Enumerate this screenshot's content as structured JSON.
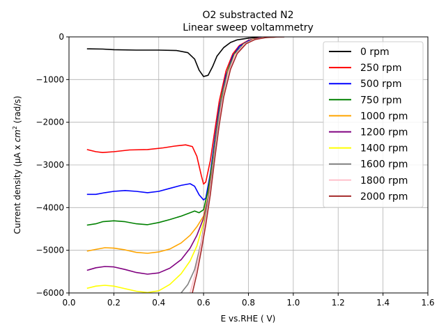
{
  "chart_data": {
    "type": "line",
    "title": "O2 substracted N2",
    "subtitle": "Linear sweep voltammetry",
    "xlabel": "E vs.RHE ( V)",
    "ylabel_pre": "Current density (μA x  ",
    "ylabel_cm": "cm",
    "ylabel_sup": "2",
    "ylabel_post": " (rad/s)",
    "xlim": [
      0.0,
      1.6
    ],
    "ylim": [
      -6000,
      0
    ],
    "xticks": [
      "0.0",
      "0.2",
      "0.4",
      "0.6",
      "0.8",
      "1.0",
      "1.2",
      "1.4",
      "1.6"
    ],
    "yticks": [
      "0",
      "−1000",
      "−2000",
      "−3000",
      "−4000",
      "−5000",
      "−6000"
    ],
    "grid": true,
    "legend_position": "top-right",
    "series": [
      {
        "name": "0 rpm",
        "color": "#000000",
        "points": [
          [
            0.08,
            -280
          ],
          [
            0.15,
            -285
          ],
          [
            0.2,
            -300
          ],
          [
            0.3,
            -310
          ],
          [
            0.4,
            -310
          ],
          [
            0.48,
            -320
          ],
          [
            0.53,
            -370
          ],
          [
            0.56,
            -520
          ],
          [
            0.58,
            -780
          ],
          [
            0.6,
            -930
          ],
          [
            0.62,
            -900
          ],
          [
            0.64,
            -700
          ],
          [
            0.66,
            -450
          ],
          [
            0.69,
            -250
          ],
          [
            0.72,
            -130
          ],
          [
            0.75,
            -70
          ],
          [
            0.8,
            -30
          ],
          [
            0.85,
            -10
          ],
          [
            0.9,
            -3
          ],
          [
            0.95,
            0
          ]
        ]
      },
      {
        "name": "250 rpm",
        "color": "#ff0000",
        "points": [
          [
            0.08,
            -2640
          ],
          [
            0.12,
            -2690
          ],
          [
            0.15,
            -2710
          ],
          [
            0.2,
            -2690
          ],
          [
            0.27,
            -2650
          ],
          [
            0.35,
            -2640
          ],
          [
            0.42,
            -2600
          ],
          [
            0.47,
            -2560
          ],
          [
            0.52,
            -2530
          ],
          [
            0.55,
            -2570
          ],
          [
            0.57,
            -2800
          ],
          [
            0.59,
            -3250
          ],
          [
            0.6,
            -3450
          ],
          [
            0.61,
            -3400
          ],
          [
            0.63,
            -2900
          ],
          [
            0.65,
            -2200
          ],
          [
            0.67,
            -1500
          ],
          [
            0.7,
            -800
          ],
          [
            0.73,
            -400
          ],
          [
            0.76,
            -200
          ],
          [
            0.8,
            -80
          ],
          [
            0.85,
            -20
          ],
          [
            0.9,
            -5
          ],
          [
            0.95,
            0
          ]
        ]
      },
      {
        "name": "500 rpm",
        "color": "#0000ff",
        "points": [
          [
            0.08,
            -3690
          ],
          [
            0.12,
            -3690
          ],
          [
            0.16,
            -3650
          ],
          [
            0.2,
            -3620
          ],
          [
            0.25,
            -3600
          ],
          [
            0.3,
            -3620
          ],
          [
            0.35,
            -3650
          ],
          [
            0.4,
            -3620
          ],
          [
            0.45,
            -3550
          ],
          [
            0.5,
            -3480
          ],
          [
            0.54,
            -3440
          ],
          [
            0.56,
            -3500
          ],
          [
            0.58,
            -3700
          ],
          [
            0.6,
            -3820
          ],
          [
            0.61,
            -3780
          ],
          [
            0.63,
            -3200
          ],
          [
            0.65,
            -2400
          ],
          [
            0.67,
            -1650
          ],
          [
            0.7,
            -900
          ],
          [
            0.73,
            -450
          ],
          [
            0.76,
            -220
          ],
          [
            0.8,
            -90
          ],
          [
            0.85,
            -25
          ],
          [
            0.9,
            -5
          ],
          [
            0.95,
            0
          ]
        ]
      },
      {
        "name": "750 rpm",
        "color": "#008000",
        "points": [
          [
            0.08,
            -4410
          ],
          [
            0.12,
            -4380
          ],
          [
            0.15,
            -4330
          ],
          [
            0.2,
            -4310
          ],
          [
            0.25,
            -4330
          ],
          [
            0.3,
            -4380
          ],
          [
            0.35,
            -4400
          ],
          [
            0.4,
            -4350
          ],
          [
            0.45,
            -4280
          ],
          [
            0.5,
            -4200
          ],
          [
            0.54,
            -4120
          ],
          [
            0.56,
            -4080
          ],
          [
            0.58,
            -4120
          ],
          [
            0.6,
            -4050
          ],
          [
            0.62,
            -3600
          ],
          [
            0.64,
            -2900
          ],
          [
            0.66,
            -2100
          ],
          [
            0.68,
            -1400
          ],
          [
            0.71,
            -750
          ],
          [
            0.74,
            -380
          ],
          [
            0.78,
            -160
          ],
          [
            0.82,
            -60
          ],
          [
            0.87,
            -15
          ],
          [
            0.92,
            -3
          ],
          [
            0.95,
            0
          ]
        ]
      },
      {
        "name": "1000 rpm",
        "color": "#ffa500",
        "points": [
          [
            0.08,
            -5020
          ],
          [
            0.12,
            -4980
          ],
          [
            0.16,
            -4940
          ],
          [
            0.2,
            -4950
          ],
          [
            0.25,
            -4990
          ],
          [
            0.3,
            -5050
          ],
          [
            0.35,
            -5070
          ],
          [
            0.4,
            -5040
          ],
          [
            0.45,
            -4970
          ],
          [
            0.5,
            -4830
          ],
          [
            0.54,
            -4650
          ],
          [
            0.57,
            -4450
          ],
          [
            0.6,
            -4200
          ],
          [
            0.62,
            -3750
          ],
          [
            0.64,
            -3000
          ],
          [
            0.66,
            -2150
          ],
          [
            0.68,
            -1450
          ],
          [
            0.71,
            -780
          ],
          [
            0.74,
            -400
          ],
          [
            0.78,
            -170
          ],
          [
            0.82,
            -65
          ],
          [
            0.87,
            -15
          ],
          [
            0.92,
            -3
          ],
          [
            0.95,
            0
          ]
        ]
      },
      {
        "name": "1200 rpm",
        "color": "#800080",
        "points": [
          [
            0.08,
            -5470
          ],
          [
            0.12,
            -5410
          ],
          [
            0.16,
            -5380
          ],
          [
            0.2,
            -5390
          ],
          [
            0.25,
            -5450
          ],
          [
            0.3,
            -5520
          ],
          [
            0.35,
            -5560
          ],
          [
            0.4,
            -5530
          ],
          [
            0.45,
            -5420
          ],
          [
            0.5,
            -5220
          ],
          [
            0.54,
            -4950
          ],
          [
            0.57,
            -4650
          ],
          [
            0.6,
            -4250
          ],
          [
            0.62,
            -3800
          ],
          [
            0.64,
            -3050
          ],
          [
            0.66,
            -2200
          ],
          [
            0.68,
            -1480
          ],
          [
            0.71,
            -800
          ],
          [
            0.74,
            -400
          ],
          [
            0.78,
            -170
          ],
          [
            0.82,
            -65
          ],
          [
            0.87,
            -15
          ],
          [
            0.92,
            -3
          ],
          [
            0.95,
            0
          ]
        ]
      },
      {
        "name": "1400 rpm",
        "color": "#ffff00",
        "points": [
          [
            0.08,
            -5890
          ],
          [
            0.12,
            -5840
          ],
          [
            0.16,
            -5820
          ],
          [
            0.2,
            -5840
          ],
          [
            0.25,
            -5900
          ],
          [
            0.3,
            -5960
          ],
          [
            0.35,
            -5990
          ],
          [
            0.4,
            -5950
          ],
          [
            0.45,
            -5800
          ],
          [
            0.5,
            -5550
          ],
          [
            0.54,
            -5250
          ],
          [
            0.57,
            -4900
          ],
          [
            0.6,
            -4350
          ],
          [
            0.62,
            -3850
          ],
          [
            0.64,
            -3100
          ],
          [
            0.66,
            -2250
          ],
          [
            0.68,
            -1500
          ],
          [
            0.71,
            -810
          ],
          [
            0.74,
            -410
          ],
          [
            0.78,
            -170
          ],
          [
            0.82,
            -65
          ],
          [
            0.87,
            -15
          ],
          [
            0.92,
            -3
          ],
          [
            0.95,
            0
          ]
        ]
      },
      {
        "name": "1600 rpm",
        "color": "#808080",
        "points": [
          [
            0.5,
            -6000
          ],
          [
            0.53,
            -5800
          ],
          [
            0.56,
            -5450
          ],
          [
            0.59,
            -4800
          ],
          [
            0.61,
            -4150
          ],
          [
            0.63,
            -3500
          ],
          [
            0.65,
            -2600
          ],
          [
            0.67,
            -1800
          ],
          [
            0.69,
            -1200
          ],
          [
            0.72,
            -650
          ],
          [
            0.75,
            -330
          ],
          [
            0.79,
            -130
          ],
          [
            0.83,
            -50
          ],
          [
            0.88,
            -12
          ],
          [
            0.93,
            -2
          ],
          [
            0.96,
            0
          ]
        ]
      },
      {
        "name": "1800 rpm",
        "color": "#ffc0cb",
        "points": [
          [
            0.54,
            -6000
          ],
          [
            0.56,
            -5600
          ],
          [
            0.58,
            -5100
          ],
          [
            0.6,
            -4550
          ],
          [
            0.62,
            -3950
          ],
          [
            0.64,
            -3200
          ],
          [
            0.66,
            -2350
          ],
          [
            0.68,
            -1600
          ],
          [
            0.71,
            -860
          ],
          [
            0.74,
            -430
          ],
          [
            0.78,
            -180
          ],
          [
            0.82,
            -70
          ],
          [
            0.87,
            -16
          ],
          [
            0.92,
            -3
          ],
          [
            0.95,
            0
          ]
        ]
      },
      {
        "name": "2000 rpm",
        "color": "#a52a2a",
        "points": [
          [
            0.55,
            -6000
          ],
          [
            0.57,
            -5550
          ],
          [
            0.59,
            -5000
          ],
          [
            0.61,
            -4400
          ],
          [
            0.63,
            -3700
          ],
          [
            0.65,
            -2850
          ],
          [
            0.67,
            -2050
          ],
          [
            0.69,
            -1400
          ],
          [
            0.72,
            -760
          ],
          [
            0.75,
            -390
          ],
          [
            0.79,
            -160
          ],
          [
            0.83,
            -60
          ],
          [
            0.88,
            -14
          ],
          [
            0.93,
            -2
          ],
          [
            0.96,
            0
          ]
        ]
      }
    ]
  }
}
